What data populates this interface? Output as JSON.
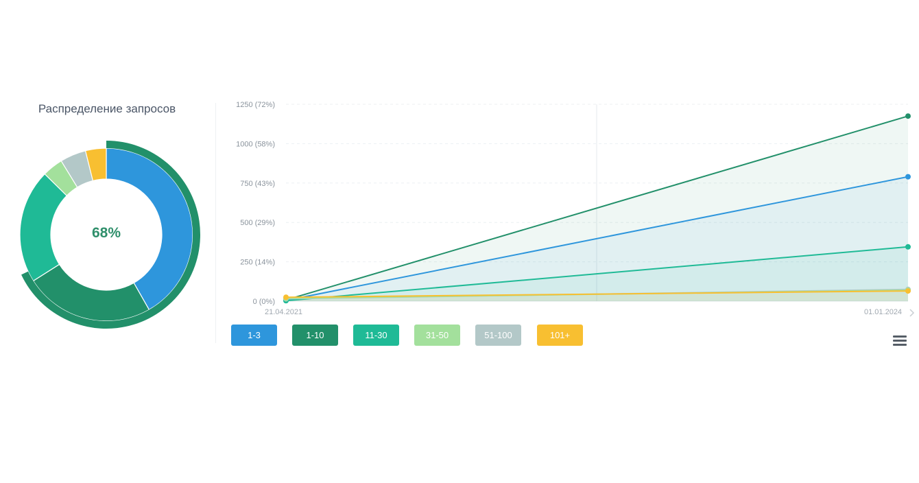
{
  "donut": {
    "title": "Распределение запросов",
    "center_label": "68%"
  },
  "colors": {
    "1-3": "#2e96dc",
    "1-10": "#22906a",
    "11-30": "#1fba96",
    "31-50": "#a3e09c",
    "51-100": "#b3c8c8",
    "101+": "#f8bf31"
  },
  "legend": {
    "items": [
      "1-3",
      "1-10",
      "11-30",
      "31-50",
      "51-100",
      "101+"
    ]
  },
  "menu": {
    "icon": "hamburger-menu-icon"
  },
  "chart_data": [
    {
      "type": "pie",
      "title": "Распределение запросов",
      "center_label": "68%",
      "inner": [
        {
          "label": "1-3",
          "value": 43
        },
        {
          "label": "11-30",
          "value": 22
        },
        {
          "label": "31-50",
          "value": 4
        },
        {
          "label": "51-100",
          "value": 5
        },
        {
          "label": "101+",
          "value": 4
        }
      ],
      "outer_ring": {
        "label": "1-10",
        "value": 68
      }
    },
    {
      "type": "area",
      "x": [
        "21.04.2021",
        "01.01.2024"
      ],
      "ylim": [
        0,
        1250
      ],
      "y_ticks": [
        "0 (0%)",
        "250 (14%)",
        "500 (29%)",
        "750 (43%)",
        "1000 (58%)",
        "1250 (72%)"
      ],
      "y_tick_values": [
        0,
        250,
        500,
        750,
        1000,
        1250
      ],
      "x_ticks": [
        "21.04.2021",
        "01.01.2024"
      ],
      "series": [
        {
          "name": "1-10",
          "values": [
            8,
            1175
          ]
        },
        {
          "name": "1-3",
          "values": [
            5,
            790
          ]
        },
        {
          "name": "11-30",
          "values": [
            3,
            345
          ]
        },
        {
          "name": "51-100",
          "values": [
            15,
            75
          ]
        },
        {
          "name": "31-50",
          "values": [
            18,
            70
          ]
        },
        {
          "name": "101+",
          "values": [
            25,
            65
          ]
        }
      ]
    }
  ]
}
